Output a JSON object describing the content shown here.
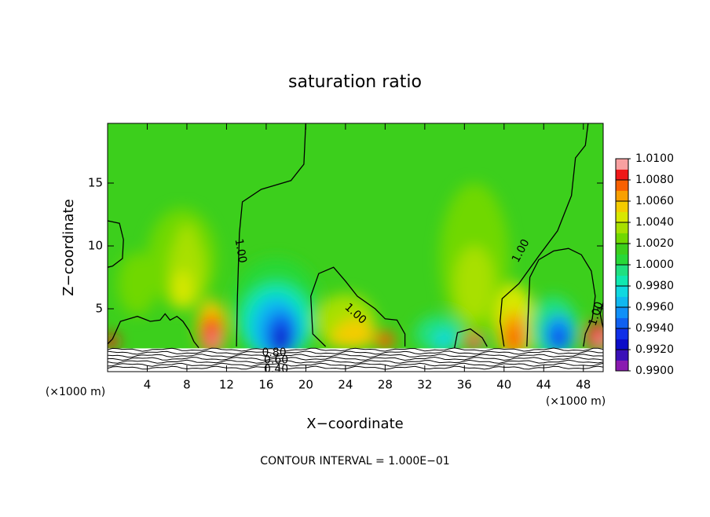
{
  "chart_data": {
    "type": "contour",
    "title": "saturation ratio",
    "xlabel": "X−coordinate",
    "ylabel": "Z−coordinate",
    "x_unit": "(×1000 m)",
    "y_unit": "(×1000 m)",
    "xlim": [
      0,
      50
    ],
    "ylim": [
      0,
      19.75
    ],
    "xticks": [
      4,
      8,
      12,
      16,
      20,
      24,
      28,
      32,
      36,
      40,
      44,
      48
    ],
    "yticks": [
      5,
      10,
      15
    ],
    "contour_labels": [
      "1.00",
      "1.00",
      "1.00",
      "1.00",
      "0.80",
      "0.60",
      "0.40"
    ],
    "footnote": "CONTOUR INTERVAL = 1.000E−01",
    "colorbar": {
      "lim": [
        0.99,
        1.01
      ],
      "ticks": [
        {
          "value": 0.99,
          "label": "0.9900"
        },
        {
          "value": 0.992,
          "label": "0.9920"
        },
        {
          "value": 0.994,
          "label": "0.9940"
        },
        {
          "value": 0.996,
          "label": "0.9960"
        },
        {
          "value": 0.998,
          "label": "0.9980"
        },
        {
          "value": 1.0,
          "label": "1.0000"
        },
        {
          "value": 1.002,
          "label": "1.0020"
        },
        {
          "value": 1.004,
          "label": "1.0040"
        },
        {
          "value": 1.006,
          "label": "1.0060"
        },
        {
          "value": 1.008,
          "label": "1.0080"
        },
        {
          "value": 1.01,
          "label": "1.0100"
        }
      ],
      "colors": [
        "#8a1ab0",
        "#3a10b8",
        "#0c0cc8",
        "#1030e8",
        "#1060f0",
        "#1090f8",
        "#10b8f0",
        "#10d8e0",
        "#10e8b0",
        "#20e080",
        "#28d838",
        "#3ccf1c",
        "#70d800",
        "#a8e000",
        "#d8e800",
        "#f4cc00",
        "#f8a000",
        "#f86000",
        "#f01818",
        "#f8a0a0"
      ]
    }
  }
}
